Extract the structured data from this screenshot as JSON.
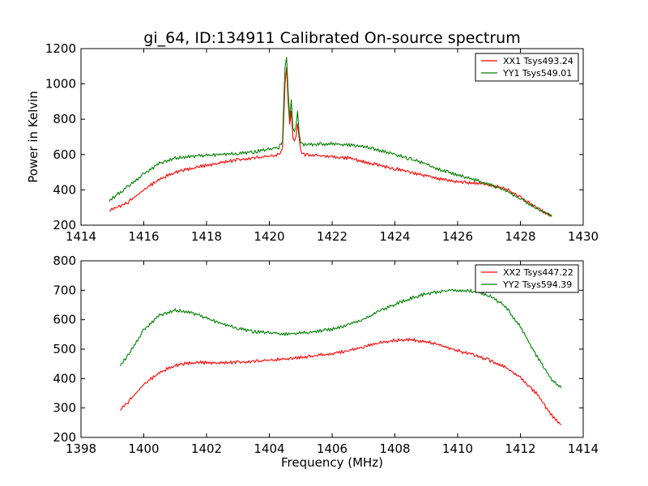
{
  "figure": {
    "title": "gi_64, ID:134911 Calibrated On-source spectrum",
    "ylabel": "Power in Kelvin",
    "xlabel": "Frequency (MHz)"
  },
  "chart_data": [
    {
      "type": "line",
      "xlim": [
        1414,
        1430
      ],
      "ylim": [
        200,
        1200
      ],
      "xticks": [
        1414,
        1416,
        1418,
        1420,
        1422,
        1424,
        1426,
        1428,
        1430
      ],
      "yticks": [
        200,
        400,
        600,
        800,
        1000,
        1200
      ],
      "legend_position": "top-right",
      "series": [
        {
          "name": "XX1 Tsys493.24",
          "color": "#ff0000",
          "points": [
            [
              1414.9,
              280
            ],
            [
              1415.5,
              330
            ],
            [
              1416.0,
              400
            ],
            [
              1416.5,
              460
            ],
            [
              1417.0,
              500
            ],
            [
              1417.5,
              520
            ],
            [
              1418.0,
              540
            ],
            [
              1418.5,
              555
            ],
            [
              1419.0,
              570
            ],
            [
              1419.5,
              580
            ],
            [
              1420.0,
              590
            ],
            [
              1420.3,
              600
            ],
            [
              1420.42,
              630
            ],
            [
              1420.5,
              1000
            ],
            [
              1420.55,
              1090
            ],
            [
              1420.6,
              900
            ],
            [
              1420.65,
              780
            ],
            [
              1420.7,
              850
            ],
            [
              1420.75,
              700
            ],
            [
              1420.8,
              680
            ],
            [
              1420.85,
              710
            ],
            [
              1420.9,
              780
            ],
            [
              1420.95,
              700
            ],
            [
              1421.0,
              620
            ],
            [
              1421.1,
              600
            ],
            [
              1421.5,
              595
            ],
            [
              1422.0,
              590
            ],
            [
              1422.5,
              580
            ],
            [
              1423.0,
              560
            ],
            [
              1423.5,
              540
            ],
            [
              1424.0,
              520
            ],
            [
              1424.5,
              500
            ],
            [
              1425.0,
              480
            ],
            [
              1425.5,
              460
            ],
            [
              1426.0,
              445
            ],
            [
              1426.5,
              440
            ],
            [
              1427.0,
              430
            ],
            [
              1427.5,
              410
            ],
            [
              1428.0,
              360
            ],
            [
              1428.5,
              300
            ],
            [
              1429.0,
              250
            ]
          ]
        },
        {
          "name": "YY1 Tsys549.01",
          "color": "#008000",
          "points": [
            [
              1414.9,
              340
            ],
            [
              1415.5,
              420
            ],
            [
              1416.0,
              490
            ],
            [
              1416.5,
              550
            ],
            [
              1417.0,
              580
            ],
            [
              1417.5,
              590
            ],
            [
              1418.0,
              595
            ],
            [
              1418.5,
              600
            ],
            [
              1419.0,
              605
            ],
            [
              1419.5,
              615
            ],
            [
              1420.0,
              630
            ],
            [
              1420.3,
              640
            ],
            [
              1420.42,
              680
            ],
            [
              1420.5,
              1100
            ],
            [
              1420.55,
              1160
            ],
            [
              1420.6,
              950
            ],
            [
              1420.65,
              800
            ],
            [
              1420.7,
              910
            ],
            [
              1420.75,
              750
            ],
            [
              1420.8,
              720
            ],
            [
              1420.85,
              760
            ],
            [
              1420.9,
              840
            ],
            [
              1420.95,
              720
            ],
            [
              1421.0,
              670
            ],
            [
              1421.1,
              655
            ],
            [
              1421.5,
              660
            ],
            [
              1422.0,
              660
            ],
            [
              1422.5,
              655
            ],
            [
              1423.0,
              645
            ],
            [
              1423.5,
              625
            ],
            [
              1424.0,
              600
            ],
            [
              1424.5,
              575
            ],
            [
              1425.0,
              545
            ],
            [
              1425.5,
              510
            ],
            [
              1426.0,
              485
            ],
            [
              1426.5,
              460
            ],
            [
              1427.0,
              430
            ],
            [
              1427.5,
              400
            ],
            [
              1428.0,
              350
            ],
            [
              1428.5,
              300
            ],
            [
              1429.0,
              250
            ]
          ]
        }
      ]
    },
    {
      "type": "line",
      "xlim": [
        1398,
        1414
      ],
      "ylim": [
        200,
        800
      ],
      "xticks": [
        1398,
        1400,
        1402,
        1404,
        1406,
        1408,
        1410,
        1412,
        1414
      ],
      "yticks": [
        200,
        300,
        400,
        500,
        600,
        700,
        800
      ],
      "legend_position": "top-right",
      "series": [
        {
          "name": "XX2 Tsys447.22",
          "color": "#ff0000",
          "points": [
            [
              1399.25,
              292
            ],
            [
              1399.5,
              320
            ],
            [
              1400.0,
              380
            ],
            [
              1400.5,
              420
            ],
            [
              1401.0,
              445
            ],
            [
              1401.5,
              453
            ],
            [
              1402.0,
              455
            ],
            [
              1402.5,
              453
            ],
            [
              1403.0,
              455
            ],
            [
              1403.5,
              458
            ],
            [
              1404.0,
              462
            ],
            [
              1404.5,
              467
            ],
            [
              1405.0,
              472
            ],
            [
              1405.5,
              478
            ],
            [
              1406.0,
              485
            ],
            [
              1406.5,
              495
            ],
            [
              1407.0,
              508
            ],
            [
              1407.5,
              522
            ],
            [
              1408.0,
              530
            ],
            [
              1408.5,
              532
            ],
            [
              1409.0,
              526
            ],
            [
              1409.5,
              512
            ],
            [
              1410.0,
              495
            ],
            [
              1410.5,
              480
            ],
            [
              1411.0,
              462
            ],
            [
              1411.5,
              440
            ],
            [
              1412.0,
              405
            ],
            [
              1412.5,
              350
            ],
            [
              1413.0,
              275
            ],
            [
              1413.3,
              243
            ]
          ]
        },
        {
          "name": "YY2 Tsys594.39",
          "color": "#008000",
          "points": [
            [
              1399.25,
              445
            ],
            [
              1399.5,
              480
            ],
            [
              1400.0,
              565
            ],
            [
              1400.5,
              615
            ],
            [
              1401.0,
              632
            ],
            [
              1401.5,
              625
            ],
            [
              1402.0,
              605
            ],
            [
              1402.5,
              585
            ],
            [
              1403.0,
              570
            ],
            [
              1403.5,
              560
            ],
            [
              1404.0,
              555
            ],
            [
              1404.5,
              552
            ],
            [
              1405.0,
              555
            ],
            [
              1405.5,
              560
            ],
            [
              1406.0,
              568
            ],
            [
              1406.5,
              582
            ],
            [
              1407.0,
              602
            ],
            [
              1407.5,
              628
            ],
            [
              1408.0,
              652
            ],
            [
              1408.5,
              672
            ],
            [
              1409.0,
              688
            ],
            [
              1409.5,
              697
            ],
            [
              1410.0,
              700
            ],
            [
              1410.5,
              697
            ],
            [
              1411.0,
              682
            ],
            [
              1411.5,
              648
            ],
            [
              1412.0,
              575
            ],
            [
              1412.5,
              480
            ],
            [
              1413.0,
              395
            ],
            [
              1413.3,
              368
            ]
          ]
        }
      ]
    }
  ]
}
